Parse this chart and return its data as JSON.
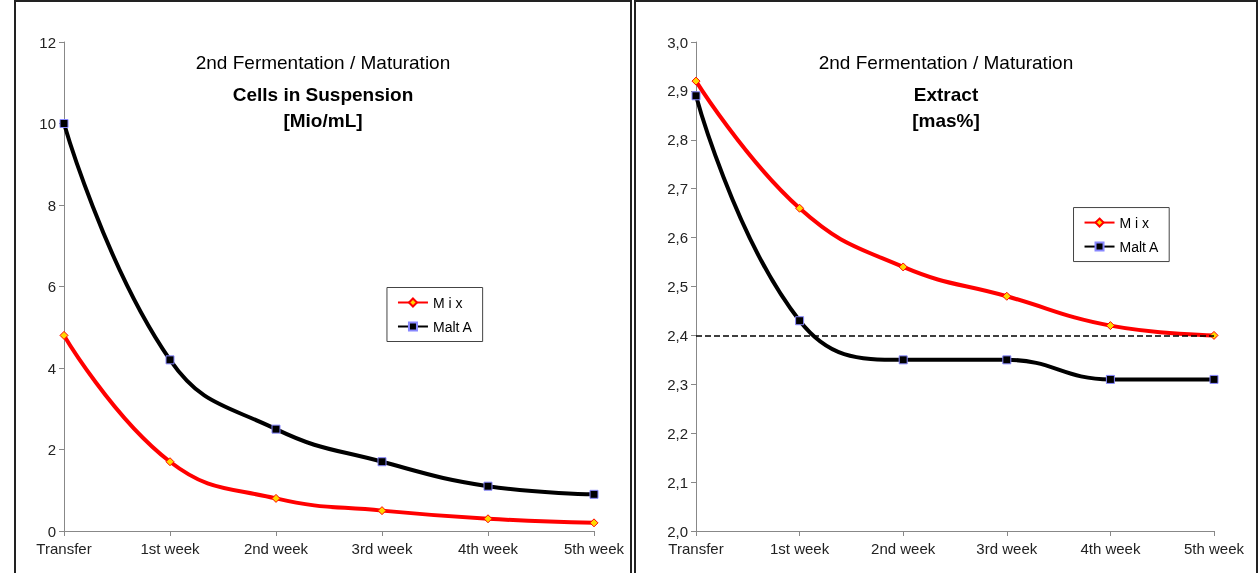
{
  "chart_data": [
    {
      "type": "line",
      "subtitle": "2nd Fermentation / Maturation",
      "title": "Cells in Suspension\n[Mio/mL]",
      "categories": [
        "Transfer",
        "1st week",
        "2nd week",
        "3rd week",
        "4th week",
        "5th week"
      ],
      "series": [
        {
          "name": "M i x",
          "color": "#ff0000",
          "marker": "diamond",
          "values": [
            4.8,
            1.7,
            0.8,
            0.5,
            0.3,
            0.2
          ]
        },
        {
          "name": "Malt A",
          "color": "#000000",
          "marker": "square",
          "values": [
            10,
            4.2,
            2.5,
            1.7,
            1.1,
            0.9
          ]
        }
      ],
      "ylim": [
        0,
        12
      ],
      "yticks": [
        0,
        2,
        4,
        6,
        8,
        10,
        12
      ],
      "grid": false,
      "legend": "right"
    },
    {
      "type": "line",
      "subtitle": "2nd Fermentation / Maturation",
      "title": "Extract\n[mas%]",
      "categories": [
        "Transfer",
        "1st week",
        "2nd week",
        "3rd week",
        "4th week",
        "5th week"
      ],
      "series": [
        {
          "name": "M i x",
          "color": "#ff0000",
          "marker": "diamond",
          "values": [
            2.92,
            2.66,
            2.54,
            2.48,
            2.42,
            2.4
          ]
        },
        {
          "name": "Malt A",
          "color": "#000000",
          "marker": "square",
          "values": [
            2.89,
            2.43,
            2.35,
            2.35,
            2.31,
            2.31
          ]
        }
      ],
      "ylim": [
        2.0,
        3.0
      ],
      "yticks": [
        {
          "value": 2.0,
          "label": "2,0"
        },
        {
          "value": 2.1,
          "label": "2,1"
        },
        {
          "value": 2.2,
          "label": "2,2"
        },
        {
          "value": 2.3,
          "label": "2,3"
        },
        {
          "value": 2.4,
          "label": "2,4"
        },
        {
          "value": 2.5,
          "label": "2,5"
        },
        {
          "value": 2.6,
          "label": "2,6"
        },
        {
          "value": 2.7,
          "label": "2,7"
        },
        {
          "value": 2.8,
          "label": "2,8"
        },
        {
          "value": 2.9,
          "label": "2,9"
        },
        {
          "value": 3.0,
          "label": "3,0"
        }
      ],
      "ref_lines": [
        {
          "axis": "y",
          "value": 2.4,
          "color": "#000000",
          "line_style": "dashed"
        }
      ],
      "grid": false,
      "legend": "top right"
    }
  ]
}
